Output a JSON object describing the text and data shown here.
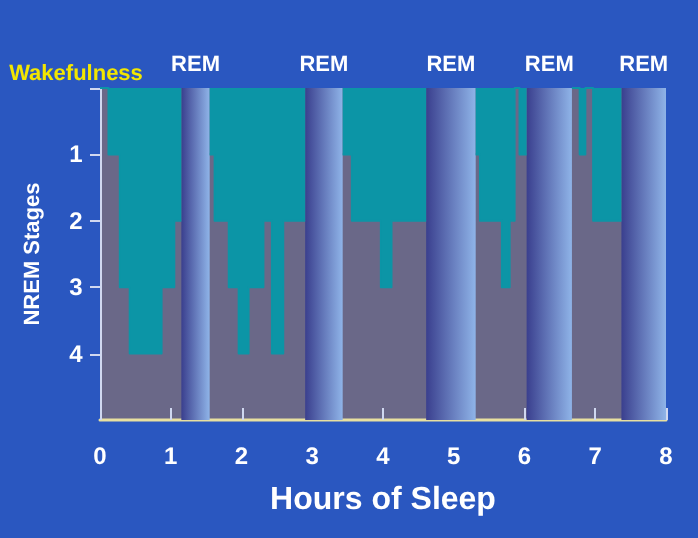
{
  "chart_data": {
    "type": "area",
    "xlabel": "Hours of Sleep",
    "ylabel": "NREM Stages",
    "x": [
      0,
      0.12,
      0.12,
      0.28,
      0.28,
      0.42,
      0.42,
      0.87,
      0.87,
      1.05,
      1.05,
      1.15,
      1.35,
      1.55,
      1.62,
      1.62,
      1.82,
      1.82,
      1.96,
      1.96,
      2.1,
      2.1,
      2.31,
      2.31,
      2.43,
      2.43,
      2.59,
      2.59,
      2.9,
      3.15,
      3.43,
      3.56,
      3.56,
      3.97,
      3.97,
      4.12,
      4.12,
      4.61,
      4.95,
      5.31,
      5.37,
      5.37,
      5.68,
      5.68,
      5.79,
      5.79,
      5.86,
      5.86,
      5.93,
      5.93,
      6.03,
      6.35,
      6.67,
      6.78,
      6.78,
      6.86,
      6.86,
      6.97,
      6.97,
      7.37
    ],
    "series": [
      {
        "color": "#0c95a6",
        "values": [
          0,
          0,
          1,
          1,
          3,
          3,
          4,
          4,
          3,
          3,
          2,
          2,
          null,
          1,
          1,
          2,
          2,
          3,
          3,
          4,
          4,
          3,
          3,
          2,
          2,
          4,
          4,
          2,
          2,
          null,
          1,
          1,
          2,
          2,
          3,
          3,
          2,
          2,
          null,
          1,
          1,
          2,
          2,
          3,
          3,
          2,
          2,
          0,
          0,
          1,
          1,
          null,
          0,
          0,
          1,
          1,
          0,
          0,
          2,
          2
        ]
      }
    ],
    "xlim": [
      0,
      8
    ],
    "xticks": [
      0,
      1,
      2,
      3,
      4,
      5,
      6,
      7,
      8
    ],
    "ylim": [
      5,
      0
    ],
    "yticks": [
      {
        "value": 0,
        "label": "Wakefulness"
      },
      1,
      2,
      3,
      4
    ],
    "bands": [
      {
        "axis": "x",
        "from": 1.15,
        "to": 1.55,
        "label": "REM",
        "color": "#8fb4e8"
      },
      {
        "axis": "x",
        "from": 2.9,
        "to": 3.43,
        "label": "REM",
        "color": "#8fb4e8"
      },
      {
        "axis": "x",
        "from": 4.61,
        "to": 5.31,
        "label": "REM",
        "color": "#8fb4e8"
      },
      {
        "axis": "x",
        "from": 6.03,
        "to": 6.67,
        "label": "REM",
        "color": "#8fb4e8"
      },
      {
        "axis": "x",
        "from": 7.37,
        "to": 8,
        "label": "REM",
        "color": "#8fb4e8"
      }
    ],
    "grid": false,
    "marker": "none"
  }
}
